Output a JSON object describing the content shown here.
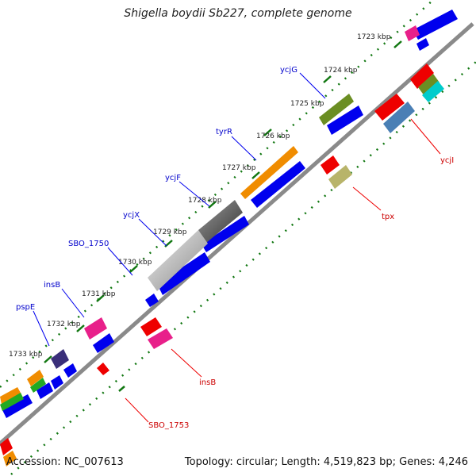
{
  "title": "Shigella boydii Sb227, complete genome",
  "footer": {
    "accession": "Accession: NC_007613",
    "summary": "Topology: circular; Length: 4,519,823 bp; Genes: 4,246"
  },
  "ruler_labels": [
    "1723 kbp",
    "1724 kbp",
    "1725 kbp",
    "1726 kbp",
    "1727 kbp",
    "1728 kbp",
    "1729 kbp",
    "1730 kbp",
    "1731 kbp",
    "1732 kbp",
    "1733 kbp"
  ],
  "outer_gene_labels": [
    "ycjG",
    "tyrR",
    "ycjF",
    "ycjX",
    "SBO_1750",
    "insB",
    "pspE"
  ],
  "inner_gene_labels": [
    "ycjI",
    "tpx",
    "insB",
    "SBO_1753"
  ],
  "colors": {
    "forward": "#0000ee",
    "red": "#ee0000",
    "magenta": "#e8208a",
    "orange": "#f08c00",
    "olive": "#6b8e23",
    "steelblue": "#4a7fb5",
    "khaki": "#b8b46a",
    "navy": "#3a2f7a",
    "green": "#22aa22",
    "cyan": "#00cccc",
    "gray": "#555555",
    "tick": "#117711",
    "label_blue": "#0000cc",
    "label_red": "#cc0000"
  }
}
